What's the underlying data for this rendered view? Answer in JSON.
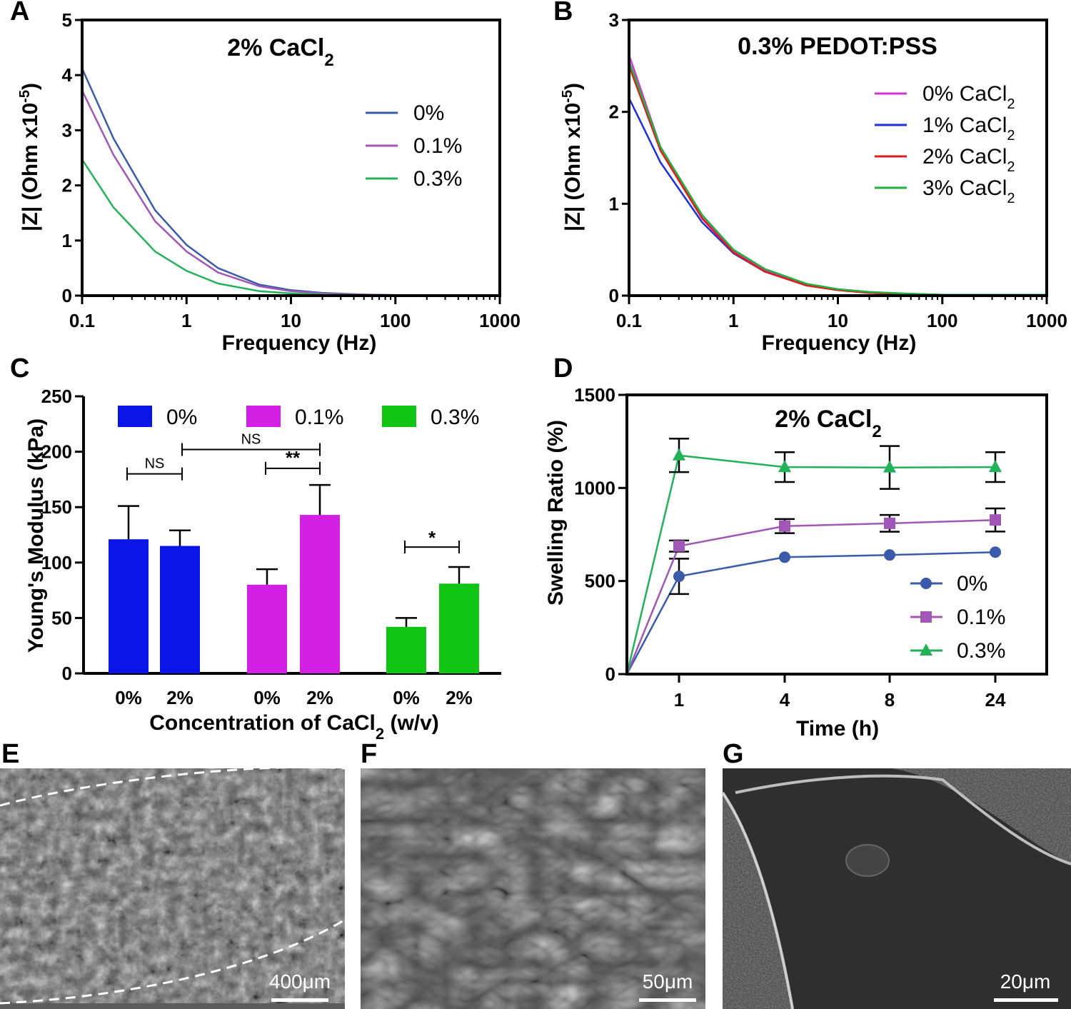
{
  "chart_data": [
    {
      "panel": "A",
      "type": "line",
      "title": "2% CaCl",
      "title_sub": "2",
      "xlabel": "Frequency (Hz)",
      "ylabel": "|Z| (Ohm x10",
      "ylabel_sup": "-5",
      "ylabel_close": ")",
      "xscale": "log",
      "xlim": [
        0.1,
        1000
      ],
      "ylim": [
        0,
        5
      ],
      "xticks": [
        "0.1",
        "1",
        "10",
        "100",
        "1000"
      ],
      "yticks": [
        "0",
        "1",
        "2",
        "3",
        "4",
        "5"
      ],
      "legend_position": "right",
      "series": [
        {
          "name": "0%",
          "color": "#3a5ba9",
          "x": [
            0.1,
            0.2,
            0.5,
            1,
            2,
            5,
            10,
            20,
            50,
            100,
            1000
          ],
          "y": [
            4.12,
            2.85,
            1.55,
            0.92,
            0.5,
            0.2,
            0.1,
            0.05,
            0.02,
            0.01,
            0.01
          ]
        },
        {
          "name": "0.1%",
          "color": "#a157b5",
          "x": [
            0.1,
            0.2,
            0.5,
            1,
            2,
            5,
            10,
            20,
            50,
            100,
            1000
          ],
          "y": [
            3.72,
            2.55,
            1.35,
            0.8,
            0.42,
            0.17,
            0.08,
            0.04,
            0.02,
            0.01,
            0.01
          ]
        },
        {
          "name": "0.3%",
          "color": "#21b25a",
          "x": [
            0.1,
            0.2,
            0.5,
            1,
            2,
            5,
            10,
            20,
            50,
            100,
            1000
          ],
          "y": [
            2.47,
            1.6,
            0.8,
            0.45,
            0.22,
            0.08,
            0.04,
            0.02,
            0.01,
            0.005,
            0.005
          ]
        }
      ]
    },
    {
      "panel": "B",
      "type": "line",
      "title": "0.3% PEDOT:PSS",
      "xlabel": "Frequency (Hz)",
      "ylabel": "|Z| (Ohm x10",
      "ylabel_sup": "-5",
      "ylabel_close": ")",
      "xscale": "log",
      "xlim": [
        0.1,
        1000
      ],
      "ylim": [
        0,
        3
      ],
      "xticks": [
        "0.1",
        "1",
        "10",
        "100",
        "1000"
      ],
      "yticks": [
        "0",
        "1",
        "2",
        "3"
      ],
      "legend_position": "right",
      "series": [
        {
          "name": "0% CaCl",
          "name_sub": "2",
          "color": "#d433d4",
          "x": [
            0.1,
            0.2,
            0.5,
            1,
            2,
            5,
            10,
            20,
            50,
            100,
            1000
          ],
          "y": [
            2.62,
            1.62,
            0.85,
            0.48,
            0.27,
            0.12,
            0.07,
            0.04,
            0.02,
            0.01,
            0.01
          ]
        },
        {
          "name": "1% CaCl",
          "name_sub": "2",
          "color": "#1c2ee0",
          "x": [
            0.1,
            0.2,
            0.5,
            1,
            2,
            5,
            10,
            20,
            50,
            100,
            1000
          ],
          "y": [
            2.15,
            1.45,
            0.8,
            0.46,
            0.26,
            0.11,
            0.06,
            0.03,
            0.015,
            0.01,
            0.01
          ]
        },
        {
          "name": "2% CaCl",
          "name_sub": "2",
          "color": "#e01c1c",
          "x": [
            0.1,
            0.2,
            0.5,
            1,
            2,
            5,
            10,
            20,
            50,
            100,
            1000
          ],
          "y": [
            2.5,
            1.58,
            0.84,
            0.47,
            0.26,
            0.11,
            0.06,
            0.03,
            0.015,
            0.01,
            0.01
          ]
        },
        {
          "name": "3% CaCl",
          "name_sub": "2",
          "color": "#21b23a",
          "x": [
            0.1,
            0.2,
            0.5,
            1,
            2,
            5,
            10,
            20,
            50,
            100,
            1000
          ],
          "y": [
            2.55,
            1.62,
            0.88,
            0.5,
            0.29,
            0.13,
            0.07,
            0.04,
            0.02,
            0.01,
            0.01
          ]
        }
      ]
    },
    {
      "panel": "C",
      "type": "bar",
      "xlabel": "Concentration of CaCl",
      "xlabel_sub": "2",
      "xlabel_tail": " (w/v)",
      "ylabel": "Young's Modulus (kPa)",
      "ylim": [
        0,
        250
      ],
      "yticks": [
        "0",
        "50",
        "100",
        "150",
        "200",
        "250"
      ],
      "legend_position": "top",
      "groups": [
        {
          "name": "0%",
          "color": "#0a14e6",
          "categories": [
            "0%",
            "2%"
          ],
          "values": [
            121,
            115
          ],
          "errors": [
            30,
            14
          ]
        },
        {
          "name": "0.1%",
          "color": "#d31ee3",
          "categories": [
            "0%",
            "2%"
          ],
          "values": [
            80,
            143
          ],
          "errors": [
            14,
            27
          ]
        },
        {
          "name": "0.3%",
          "color": "#10c414",
          "categories": [
            "0%",
            "2%"
          ],
          "values": [
            42,
            81
          ],
          "errors": [
            8,
            15
          ]
        }
      ],
      "significance": [
        "NS",
        "NS",
        "**",
        "*"
      ]
    },
    {
      "panel": "D",
      "type": "line",
      "title": "2% CaCl",
      "title_sub": "2",
      "xlabel": "Time (h)",
      "ylabel": "Swelling Ratio (%)",
      "ylim": [
        0,
        1500
      ],
      "xticks": [
        "1",
        "4",
        "8",
        "24"
      ],
      "yticks": [
        "0",
        "500",
        "1000",
        "1500"
      ],
      "legend_position": "bottom-right",
      "series": [
        {
          "name": "0%",
          "color": "#3a5ba9",
          "marker": "circle",
          "x": [
            0,
            1,
            4,
            8,
            24
          ],
          "y": [
            0,
            525,
            628,
            640,
            655
          ],
          "errors": [
            0,
            95,
            0,
            0,
            0
          ]
        },
        {
          "name": "0.1%",
          "color": "#a157b5",
          "marker": "square",
          "x": [
            0,
            1,
            4,
            8,
            24
          ],
          "y": [
            0,
            688,
            795,
            810,
            828
          ],
          "errors": [
            0,
            30,
            38,
            45,
            62
          ]
        },
        {
          "name": "0.3%",
          "color": "#21b25a",
          "marker": "triangle",
          "x": [
            0,
            1,
            4,
            8,
            24
          ],
          "y": [
            0,
            1175,
            1112,
            1110,
            1112
          ],
          "errors": [
            0,
            90,
            80,
            115,
            80
          ]
        }
      ]
    }
  ],
  "panels": {
    "a": "A",
    "b": "B",
    "c": "C",
    "d": "D",
    "e": "E",
    "f": "F",
    "g": "G"
  },
  "sem": {
    "e_scale": "400μm",
    "f_scale": "50μm",
    "g_scale": "20μm"
  }
}
